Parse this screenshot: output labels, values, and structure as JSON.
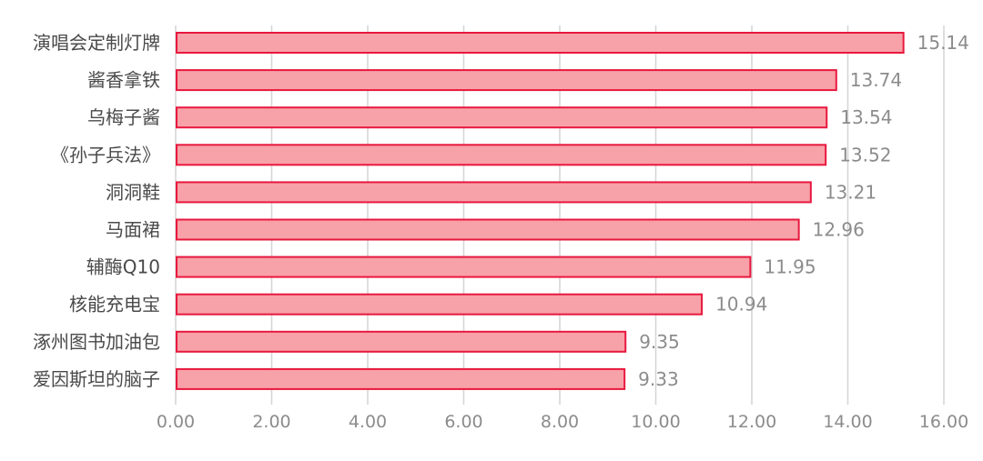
{
  "chart_data": {
    "type": "bar",
    "orientation": "horizontal",
    "categories": [
      "演唱会定制灯牌",
      "酱香拿铁",
      "乌梅子酱",
      "《孙子兵法》",
      "洞洞鞋",
      "马面裙",
      "辅酶Q10",
      "核能充电宝",
      "涿州图书加油包",
      "爱因斯坦的脑子"
    ],
    "values": [
      15.14,
      13.74,
      13.54,
      13.52,
      13.21,
      12.96,
      11.95,
      10.94,
      9.35,
      9.33
    ],
    "value_labels": [
      "15.14",
      "13.74",
      "13.54",
      "13.52",
      "13.21",
      "12.96",
      "11.95",
      "10.94",
      "9.35",
      "9.33"
    ],
    "xlim": [
      0,
      16
    ],
    "x_ticks": [
      "0.00",
      "2.00",
      "4.00",
      "6.00",
      "8.00",
      "10.00",
      "12.00",
      "14.00",
      "16.00"
    ],
    "grid": "vertical",
    "colors": {
      "bar_fill": "#f7a1a8",
      "bar_stroke": "#e8183e",
      "grid": "#d4d4d4"
    }
  }
}
